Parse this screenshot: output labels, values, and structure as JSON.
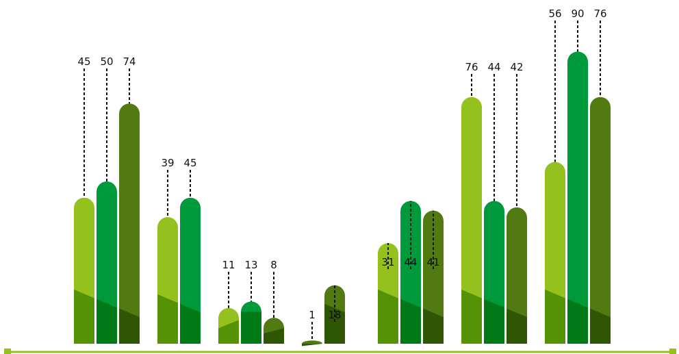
{
  "chart_data": {
    "type": "bar",
    "title": "",
    "xlabel": "",
    "ylabel": "",
    "ylim": [
      0,
      100
    ],
    "grid": false,
    "legend": "none",
    "groups": [
      {
        "values": [
          45,
          50,
          74
        ],
        "labels": [
          "45",
          "50",
          "74"
        ],
        "colors": [
          "light",
          "mid",
          "dark"
        ]
      },
      {
        "values": [
          39,
          45
        ],
        "labels": [
          "39",
          "45"
        ],
        "colors": [
          "light",
          "mid"
        ]
      },
      {
        "values": [
          11,
          13,
          8
        ],
        "labels": [
          "11",
          "13",
          "8"
        ],
        "colors": [
          "light",
          "mid",
          "dark"
        ]
      },
      {
        "values": [
          1,
          18
        ],
        "labels": [
          "1",
          "18"
        ],
        "colors": [
          "dark",
          "dark"
        ]
      },
      {
        "values": [
          31,
          44,
          41
        ],
        "labels": [
          "31",
          "44",
          "41"
        ],
        "colors": [
          "light",
          "mid",
          "dark"
        ]
      },
      {
        "values": [
          76,
          44,
          42
        ],
        "labels": [
          "76",
          "44",
          "42"
        ],
        "colors": [
          "light",
          "mid",
          "dark"
        ]
      },
      {
        "values": [
          56,
          90,
          76
        ],
        "labels": [
          "56",
          "90",
          "76"
        ],
        "colors": [
          "light",
          "mid",
          "dark"
        ]
      }
    ]
  },
  "colors": {
    "light_top": "#95c11f",
    "light_bottom": "#559205",
    "mid_top": "#009a3c",
    "mid_bottom": "#007a16",
    "dark_top": "#527a12",
    "dark_bottom": "#2e5604",
    "baseline": "#95c11f",
    "label": "#111111"
  }
}
